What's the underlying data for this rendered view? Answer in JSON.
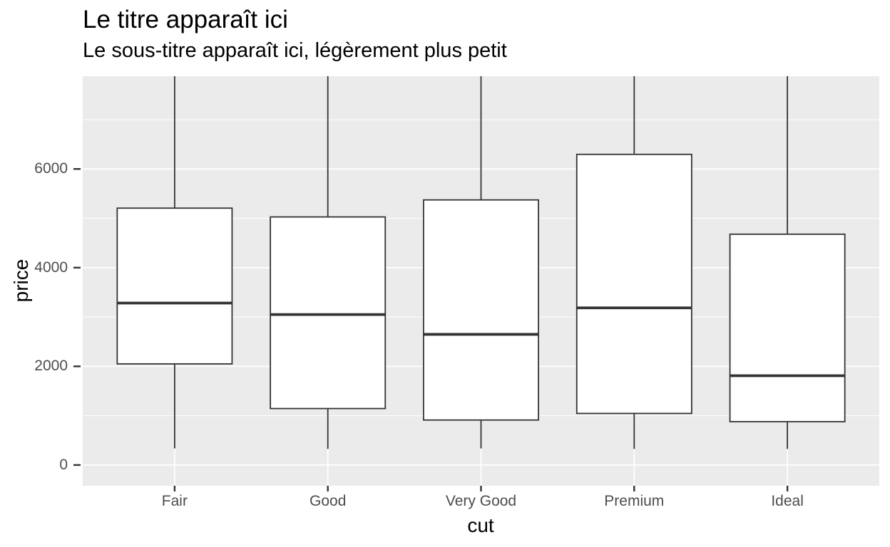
{
  "header": {
    "title": "Le titre apparaît ici",
    "subtitle": "Le sous-titre apparaît ici, légèrement plus petit"
  },
  "chart_data": {
    "type": "boxplot",
    "title": "Le titre apparaît ici",
    "subtitle": "Le sous-titre apparaît ici, légèrement plus petit",
    "xlabel": "cut",
    "ylabel": "price",
    "categories": [
      "Fair",
      "Good",
      "Very Good",
      "Premium",
      "Ideal"
    ],
    "series": [
      {
        "category": "Fair",
        "lower_whisker": 337,
        "q1": 2050,
        "median": 3282,
        "q3": 5206,
        "upper_whisker": null,
        "upper_whisker_clipped_at_top": true
      },
      {
        "category": "Good",
        "lower_whisker": 327,
        "q1": 1145,
        "median": 3050,
        "q3": 5028,
        "upper_whisker": null,
        "upper_whisker_clipped_at_top": true
      },
      {
        "category": "Very Good",
        "lower_whisker": 336,
        "q1": 912,
        "median": 2648,
        "q3": 5373,
        "upper_whisker": null,
        "upper_whisker_clipped_at_top": true
      },
      {
        "category": "Premium",
        "lower_whisker": 326,
        "q1": 1046,
        "median": 3185,
        "q3": 6296,
        "upper_whisker": null,
        "upper_whisker_clipped_at_top": true
      },
      {
        "category": "Ideal",
        "lower_whisker": 326,
        "q1": 878,
        "median": 1810,
        "q3": 4678,
        "upper_whisker": null,
        "upper_whisker_clipped_at_top": true
      }
    ],
    "y_ticks": [
      0,
      2000,
      4000,
      6000
    ],
    "y_minor_gridlines": [
      1000,
      3000,
      5000,
      7000
    ],
    "ylim_visible": [
      -420,
      7880
    ],
    "legend": "none",
    "grid": {
      "horizontal_major": true,
      "horizontal_minor": true,
      "vertical_major_at_categories": true
    },
    "colors": {
      "panel_background": "#EBEBEB",
      "gridline": "#FFFFFF",
      "box_stroke": "#333333",
      "box_fill": "#FFFFFF",
      "tick_mark": "#333333",
      "axis_text": "#4D4D4D",
      "title_text": "#000000"
    }
  }
}
